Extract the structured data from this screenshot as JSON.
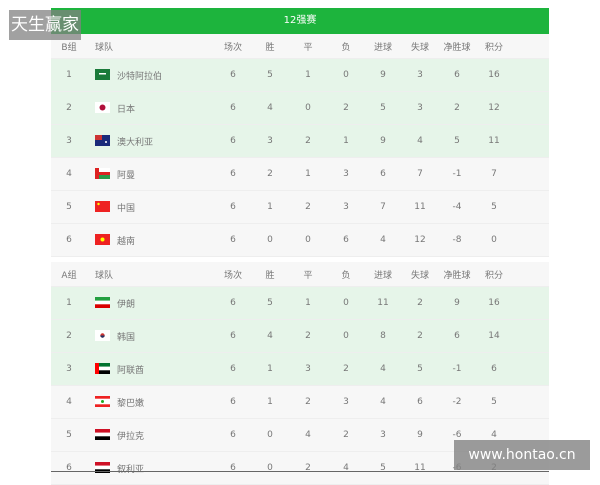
{
  "title": "12强赛",
  "watermark_left": "天生赢家",
  "watermark_right": "www.hontao.cn",
  "colors": {
    "header_green": "#1db43d",
    "qualified_row": "#e6f5e9"
  },
  "columns": [
    "球队",
    "场次",
    "胜",
    "平",
    "负",
    "进球",
    "失球",
    "净胜球",
    "积分"
  ],
  "groups": [
    {
      "label": "B组",
      "rows": [
        {
          "rank": "1",
          "flag": "saudi-arabia-flag",
          "team": "沙特阿拉伯",
          "p": "6",
          "w": "5",
          "d": "1",
          "l": "0",
          "gf": "9",
          "ga": "3",
          "gd": "6",
          "pts": "16"
        },
        {
          "rank": "2",
          "flag": "japan-flag",
          "team": "日本",
          "p": "6",
          "w": "4",
          "d": "0",
          "l": "2",
          "gf": "5",
          "ga": "3",
          "gd": "2",
          "pts": "12"
        },
        {
          "rank": "3",
          "flag": "australia-flag",
          "team": "澳大利亚",
          "p": "6",
          "w": "3",
          "d": "2",
          "l": "1",
          "gf": "9",
          "ga": "4",
          "gd": "5",
          "pts": "11"
        },
        {
          "rank": "4",
          "flag": "oman-flag",
          "team": "阿曼",
          "p": "6",
          "w": "2",
          "d": "1",
          "l": "3",
          "gf": "6",
          "ga": "7",
          "gd": "-1",
          "pts": "7"
        },
        {
          "rank": "5",
          "flag": "china-flag",
          "team": "中国",
          "p": "6",
          "w": "1",
          "d": "2",
          "l": "3",
          "gf": "7",
          "ga": "11",
          "gd": "-4",
          "pts": "5"
        },
        {
          "rank": "6",
          "flag": "vietnam-flag",
          "team": "越南",
          "p": "6",
          "w": "0",
          "d": "0",
          "l": "6",
          "gf": "4",
          "ga": "12",
          "gd": "-8",
          "pts": "0"
        }
      ]
    },
    {
      "label": "A组",
      "rows": [
        {
          "rank": "1",
          "flag": "iran-flag",
          "team": "伊朗",
          "p": "6",
          "w": "5",
          "d": "1",
          "l": "0",
          "gf": "11",
          "ga": "2",
          "gd": "9",
          "pts": "16"
        },
        {
          "rank": "2",
          "flag": "south-korea-flag",
          "team": "韩国",
          "p": "6",
          "w": "4",
          "d": "2",
          "l": "0",
          "gf": "8",
          "ga": "2",
          "gd": "6",
          "pts": "14"
        },
        {
          "rank": "3",
          "flag": "uae-flag",
          "team": "阿联酋",
          "p": "6",
          "w": "1",
          "d": "3",
          "l": "2",
          "gf": "4",
          "ga": "5",
          "gd": "-1",
          "pts": "6"
        },
        {
          "rank": "4",
          "flag": "lebanon-flag",
          "team": "黎巴嫩",
          "p": "6",
          "w": "1",
          "d": "2",
          "l": "3",
          "gf": "4",
          "ga": "6",
          "gd": "-2",
          "pts": "5"
        },
        {
          "rank": "5",
          "flag": "iraq-flag",
          "team": "伊拉克",
          "p": "6",
          "w": "0",
          "d": "4",
          "l": "2",
          "gf": "3",
          "ga": "9",
          "gd": "-6",
          "pts": "4"
        },
        {
          "rank": "6",
          "flag": "syria-flag",
          "team": "叙利亚",
          "p": "6",
          "w": "0",
          "d": "2",
          "l": "4",
          "gf": "5",
          "ga": "11",
          "gd": "-6",
          "pts": "2"
        }
      ]
    }
  ]
}
